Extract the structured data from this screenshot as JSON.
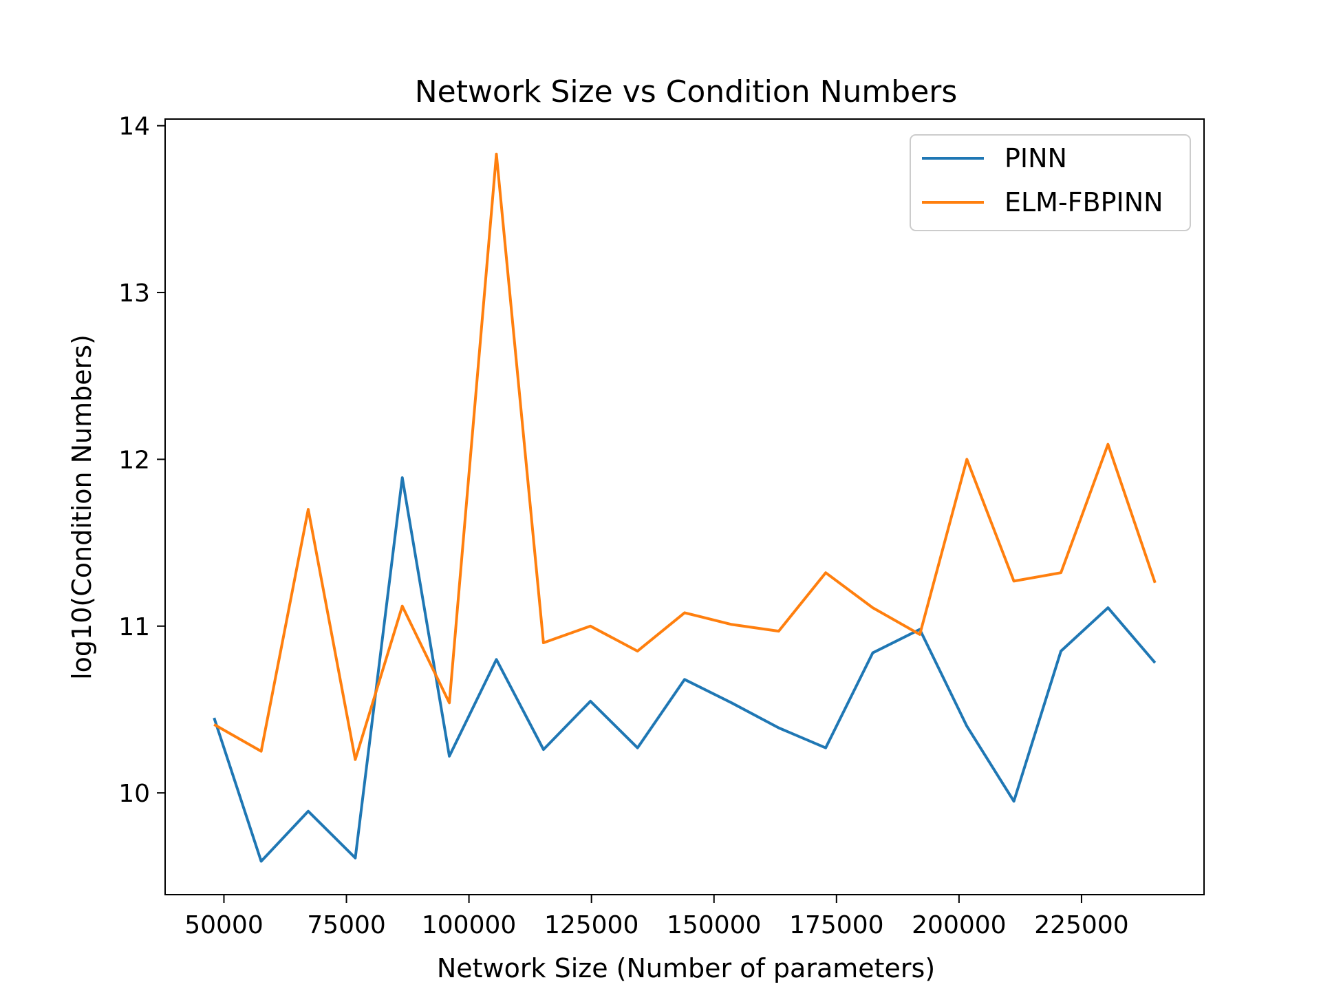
{
  "chart_data": {
    "type": "line",
    "title": "Network Size vs Condition Numbers",
    "xlabel": "Network Size (Number of parameters)",
    "ylabel": "log10(Condition Numbers)",
    "xlim": [
      38000,
      250000
    ],
    "ylim": [
      9.39,
      14.04
    ],
    "xticks": [
      50000,
      75000,
      100000,
      125000,
      150000,
      175000,
      200000,
      225000
    ],
    "yticks": [
      10,
      11,
      12,
      13,
      14
    ],
    "grid": false,
    "legend": "upper right",
    "x": [
      48000,
      57600,
      67200,
      76800,
      86400,
      96000,
      105600,
      115200,
      124800,
      134400,
      144000,
      153600,
      163200,
      172800,
      182400,
      192000,
      201600,
      211200,
      220800,
      230400,
      240000
    ],
    "series": [
      {
        "name": "PINN",
        "color": "#1f77b4",
        "values": [
          10.45,
          9.59,
          9.89,
          9.61,
          11.89,
          10.22,
          10.8,
          10.26,
          10.55,
          10.27,
          10.68,
          10.54,
          10.39,
          10.27,
          10.84,
          10.98,
          10.4,
          9.95,
          10.85,
          11.11,
          10.78
        ]
      },
      {
        "name": "ELM-FBPINN",
        "color": "#ff7f0e",
        "values": [
          10.41,
          10.25,
          11.7,
          10.2,
          11.12,
          10.54,
          13.83,
          10.9,
          11.0,
          10.85,
          11.08,
          11.01,
          10.97,
          11.32,
          11.11,
          10.95,
          12.0,
          11.27,
          11.32,
          12.09,
          11.26
        ]
      }
    ]
  }
}
